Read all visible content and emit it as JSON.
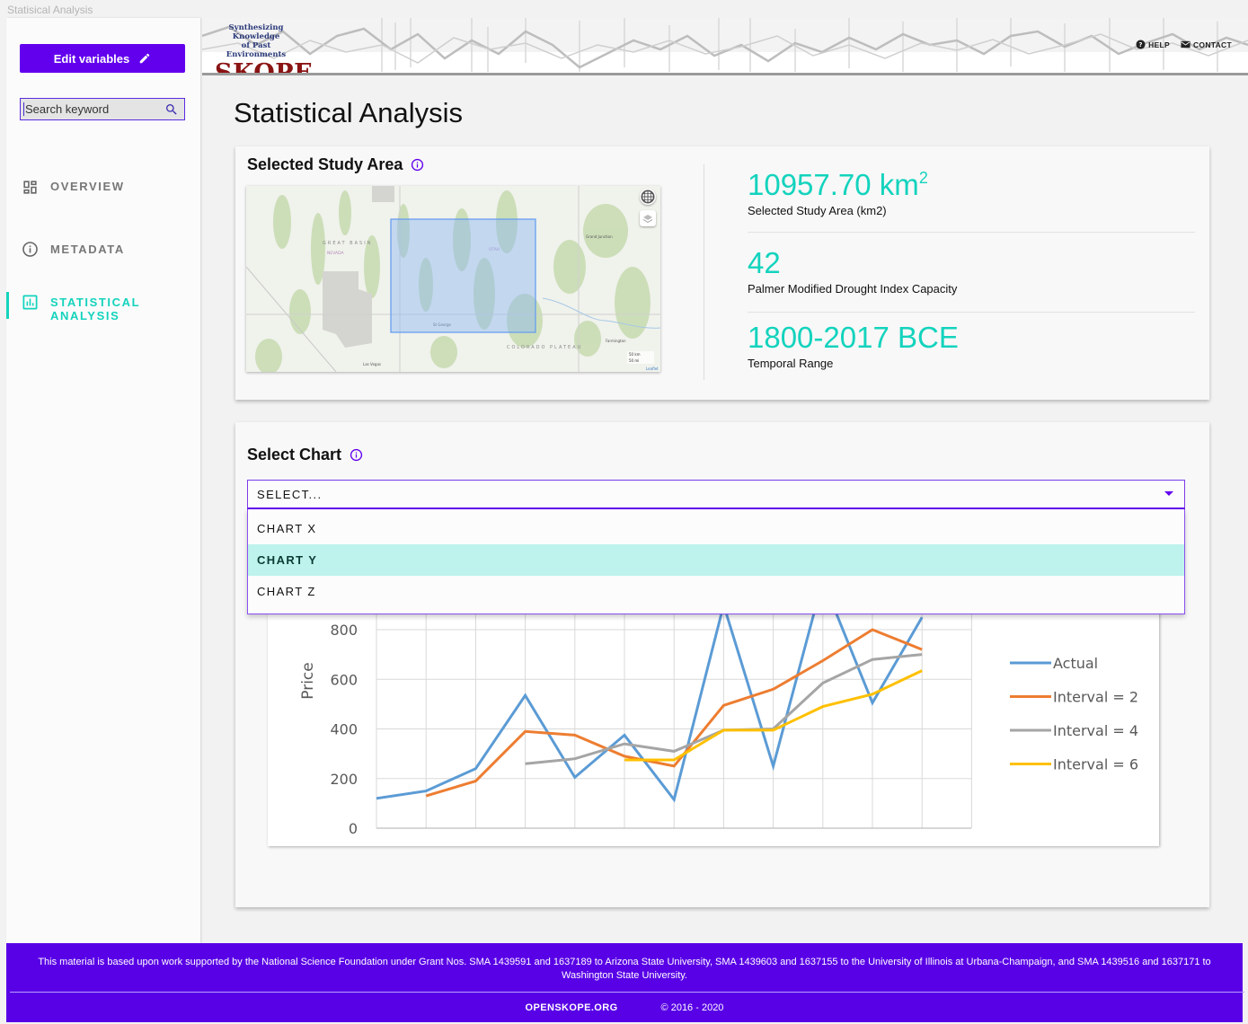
{
  "window": {
    "title": "Statisical Analysis"
  },
  "header": {
    "logo_tagline_1": "Synthesizing Knowledge",
    "logo_tagline_2": "of Past Environments",
    "logo_name": "SKOPE",
    "links": [
      {
        "label": "HELP",
        "icon": "help-circle-icon"
      },
      {
        "label": "CONTACT",
        "icon": "mail-icon"
      }
    ]
  },
  "sidebar": {
    "edit_button": {
      "label": "Edit variables",
      "icon": "pencil-icon"
    },
    "search": {
      "placeholder": "Search keyword",
      "value": "",
      "icon": "search-icon"
    },
    "nav": [
      {
        "label": "OVERVIEW",
        "icon": "dashboard-icon",
        "active": false
      },
      {
        "label": "METADATA",
        "icon": "info-icon",
        "active": false
      },
      {
        "label_line1": "STATISTICAL",
        "label_line2": "ANALYSIS",
        "icon": "bar-chart-icon",
        "active": true
      }
    ]
  },
  "page": {
    "title": "Statistical Analysis"
  },
  "study_area": {
    "title": "Selected Study Area",
    "map": {
      "labels": [
        "GREAT BASIN",
        "NEVADA",
        "UTAH",
        "COLORADO PLATEAU",
        "St George",
        "Grand Junction",
        "Las Vegas",
        "Farmington"
      ],
      "scale": [
        "50 km",
        "50 mi"
      ],
      "attribution": "Leaflet",
      "controls": [
        "globe-icon",
        "layers-icon"
      ]
    },
    "stats": [
      {
        "value": "10957.70 km",
        "sup": "2",
        "label": "Selected Study Area (km2)"
      },
      {
        "value": "42",
        "label": "Palmer Modified Drought Index Capacity"
      },
      {
        "value": "1800-2017 BCE",
        "label": "Temporal Range"
      }
    ]
  },
  "select_chart": {
    "title": "Select Chart",
    "placeholder": "SELECT...",
    "options": [
      {
        "label": "CHART X",
        "highlighted": false
      },
      {
        "label": "CHART Y",
        "highlighted": true
      },
      {
        "label": "CHART Z",
        "highlighted": false
      }
    ]
  },
  "chart_data": {
    "type": "line",
    "title": "",
    "xlabel": "",
    "ylabel": "Price",
    "ylim": [
      0,
      800
    ],
    "yticks": [
      0,
      200,
      400,
      600,
      800
    ],
    "grid": true,
    "legend_position": "right",
    "x": [
      1,
      2,
      3,
      4,
      5,
      6,
      7,
      8,
      9,
      10,
      11,
      12
    ],
    "series": [
      {
        "name": "Actual",
        "color": "#5b9bd5",
        "values": [
          120,
          150,
          240,
          535,
          205,
          375,
          115,
          900,
          250,
          1000,
          505,
          850
        ]
      },
      {
        "name": "Interval = 2",
        "color": "#ed7d31",
        "values": [
          null,
          130,
          190,
          390,
          375,
          290,
          250,
          495,
          560,
          675,
          800,
          720
        ]
      },
      {
        "name": "Interval = 4",
        "color": "#a5a5a5",
        "values": [
          null,
          null,
          null,
          260,
          280,
          340,
          310,
          395,
          400,
          585,
          680,
          700
        ]
      },
      {
        "name": "Interval = 6",
        "color": "#ffc000",
        "values": [
          null,
          null,
          null,
          null,
          null,
          275,
          275,
          395,
          395,
          490,
          540,
          635
        ]
      }
    ]
  },
  "footer": {
    "note": "This material is based upon work supported by the National Science Foundation under Grant Nos. SMA 1439591 and 1637189 to Arizona State University, SMA 1439603 and 1637155 to the University of Illinois at Urbana-Champaign, and SMA 1439516 and 1637171 to Washington State University.",
    "site": "OPENSKOPE.ORG",
    "copyright": "© 2016 - 2020"
  },
  "colors": {
    "accent": "#6200ee",
    "teal": "#13d3bd",
    "footer": "#5800e6",
    "highlight": "#bdf3ec"
  }
}
